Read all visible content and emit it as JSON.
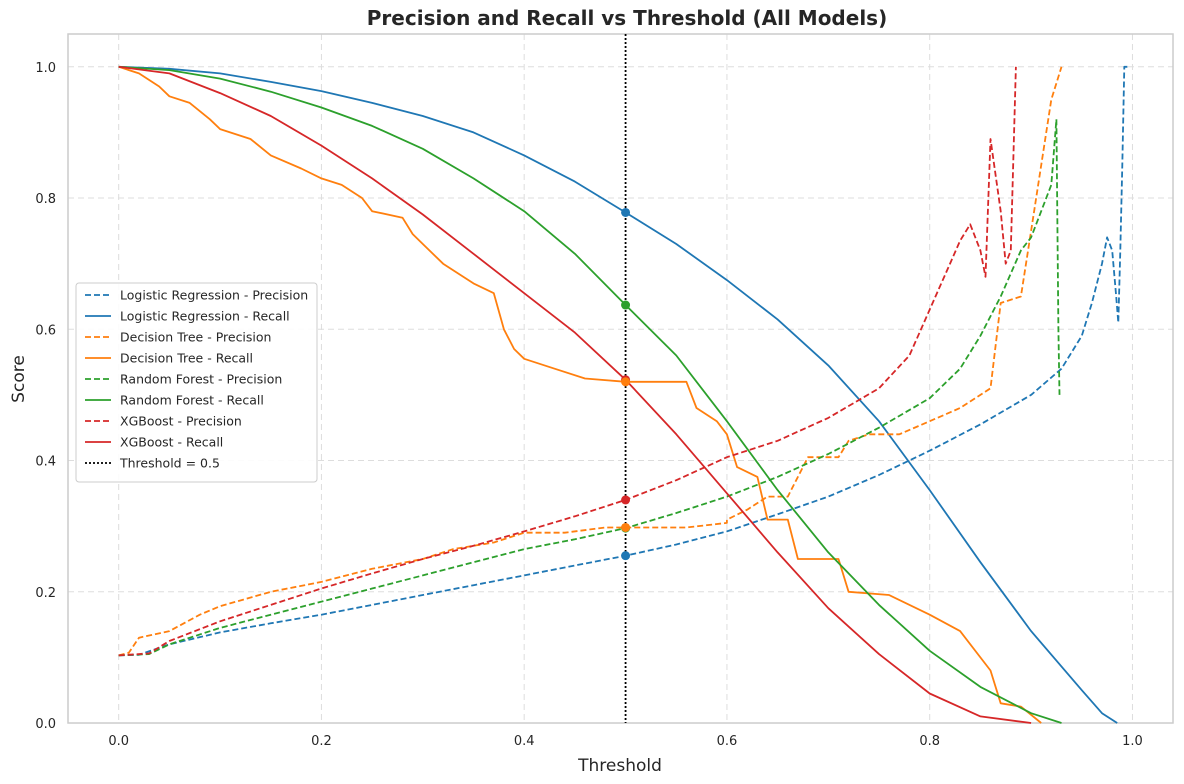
{
  "chart_data": {
    "type": "line",
    "title": "Precision and Recall vs Threshold (All Models)",
    "xlabel": "Threshold",
    "ylabel": "Score",
    "xlim": [
      -0.05,
      1.04
    ],
    "ylim": [
      0,
      1.05
    ],
    "x_ticks": [
      "0.0",
      "0.2",
      "0.4",
      "0.6",
      "0.8",
      "1.0"
    ],
    "y_ticks": [
      "0.0",
      "0.2",
      "0.4",
      "0.6",
      "0.8",
      "1.0"
    ],
    "grid": true,
    "legend_position": "center-left",
    "threshold_line": {
      "x": 0.5,
      "label": "Threshold = 0.5",
      "color": "#000000"
    },
    "series": [
      {
        "name": "Logistic Regression - Precision",
        "color": "#1f77b4",
        "style": "dashed",
        "points": [
          [
            0.0,
            0.103
          ],
          [
            0.02,
            0.104
          ],
          [
            0.05,
            0.12
          ],
          [
            0.1,
            0.138
          ],
          [
            0.15,
            0.152
          ],
          [
            0.2,
            0.165
          ],
          [
            0.25,
            0.18
          ],
          [
            0.3,
            0.195
          ],
          [
            0.35,
            0.21
          ],
          [
            0.4,
            0.225
          ],
          [
            0.45,
            0.24
          ],
          [
            0.5,
            0.255
          ],
          [
            0.55,
            0.272
          ],
          [
            0.6,
            0.292
          ],
          [
            0.65,
            0.318
          ],
          [
            0.7,
            0.345
          ],
          [
            0.75,
            0.378
          ],
          [
            0.8,
            0.415
          ],
          [
            0.85,
            0.455
          ],
          [
            0.9,
            0.5
          ],
          [
            0.93,
            0.54
          ],
          [
            0.95,
            0.59
          ],
          [
            0.96,
            0.64
          ],
          [
            0.97,
            0.7
          ],
          [
            0.975,
            0.74
          ],
          [
            0.98,
            0.72
          ],
          [
            0.984,
            0.65
          ],
          [
            0.986,
            0.61
          ],
          [
            0.988,
            0.72
          ],
          [
            0.99,
            0.85
          ],
          [
            0.992,
            1.0
          ],
          [
            0.995,
            1.0
          ]
        ]
      },
      {
        "name": "Logistic Regression - Recall",
        "color": "#1f77b4",
        "style": "solid",
        "points": [
          [
            0.0,
            1.0
          ],
          [
            0.05,
            0.997
          ],
          [
            0.1,
            0.99
          ],
          [
            0.15,
            0.977
          ],
          [
            0.2,
            0.963
          ],
          [
            0.25,
            0.945
          ],
          [
            0.3,
            0.925
          ],
          [
            0.35,
            0.9
          ],
          [
            0.4,
            0.865
          ],
          [
            0.45,
            0.825
          ],
          [
            0.5,
            0.778
          ],
          [
            0.55,
            0.73
          ],
          [
            0.6,
            0.675
          ],
          [
            0.65,
            0.615
          ],
          [
            0.7,
            0.545
          ],
          [
            0.75,
            0.46
          ],
          [
            0.8,
            0.355
          ],
          [
            0.85,
            0.245
          ],
          [
            0.9,
            0.14
          ],
          [
            0.95,
            0.05
          ],
          [
            0.97,
            0.015
          ],
          [
            0.985,
            0.0
          ]
        ]
      },
      {
        "name": "Decision Tree - Precision",
        "color": "#ff7f0e",
        "style": "dashed",
        "points": [
          [
            0.0,
            0.103
          ],
          [
            0.01,
            0.107
          ],
          [
            0.02,
            0.13
          ],
          [
            0.05,
            0.14
          ],
          [
            0.08,
            0.165
          ],
          [
            0.1,
            0.178
          ],
          [
            0.15,
            0.2
          ],
          [
            0.2,
            0.215
          ],
          [
            0.25,
            0.235
          ],
          [
            0.3,
            0.25
          ],
          [
            0.33,
            0.265
          ],
          [
            0.37,
            0.275
          ],
          [
            0.4,
            0.29
          ],
          [
            0.44,
            0.29
          ],
          [
            0.48,
            0.298
          ],
          [
            0.52,
            0.298
          ],
          [
            0.56,
            0.298
          ],
          [
            0.6,
            0.305
          ],
          [
            0.6,
            0.31
          ],
          [
            0.62,
            0.325
          ],
          [
            0.64,
            0.345
          ],
          [
            0.66,
            0.345
          ],
          [
            0.68,
            0.405
          ],
          [
            0.71,
            0.405
          ],
          [
            0.72,
            0.43
          ],
          [
            0.74,
            0.44
          ],
          [
            0.77,
            0.44
          ],
          [
            0.8,
            0.46
          ],
          [
            0.83,
            0.48
          ],
          [
            0.86,
            0.51
          ],
          [
            0.87,
            0.64
          ],
          [
            0.89,
            0.65
          ],
          [
            0.9,
            0.75
          ],
          [
            0.91,
            0.85
          ],
          [
            0.92,
            0.95
          ],
          [
            0.93,
            1.0
          ]
        ]
      },
      {
        "name": "Decision Tree - Recall",
        "color": "#ff7f0e",
        "style": "solid",
        "points": [
          [
            0.0,
            1.0
          ],
          [
            0.02,
            0.99
          ],
          [
            0.04,
            0.97
          ],
          [
            0.05,
            0.955
          ],
          [
            0.07,
            0.945
          ],
          [
            0.09,
            0.92
          ],
          [
            0.1,
            0.905
          ],
          [
            0.13,
            0.89
          ],
          [
            0.15,
            0.865
          ],
          [
            0.18,
            0.845
          ],
          [
            0.2,
            0.83
          ],
          [
            0.22,
            0.82
          ],
          [
            0.24,
            0.8
          ],
          [
            0.25,
            0.78
          ],
          [
            0.28,
            0.77
          ],
          [
            0.29,
            0.745
          ],
          [
            0.3,
            0.73
          ],
          [
            0.32,
            0.7
          ],
          [
            0.35,
            0.67
          ],
          [
            0.37,
            0.655
          ],
          [
            0.38,
            0.6
          ],
          [
            0.39,
            0.57
          ],
          [
            0.4,
            0.555
          ],
          [
            0.43,
            0.54
          ],
          [
            0.46,
            0.525
          ],
          [
            0.5,
            0.52
          ],
          [
            0.56,
            0.52
          ],
          [
            0.57,
            0.48
          ],
          [
            0.59,
            0.46
          ],
          [
            0.6,
            0.44
          ],
          [
            0.61,
            0.39
          ],
          [
            0.63,
            0.375
          ],
          [
            0.64,
            0.31
          ],
          [
            0.66,
            0.31
          ],
          [
            0.67,
            0.25
          ],
          [
            0.71,
            0.25
          ],
          [
            0.72,
            0.2
          ],
          [
            0.76,
            0.195
          ],
          [
            0.8,
            0.165
          ],
          [
            0.83,
            0.14
          ],
          [
            0.86,
            0.08
          ],
          [
            0.87,
            0.03
          ],
          [
            0.89,
            0.025
          ],
          [
            0.91,
            0.0
          ]
        ]
      },
      {
        "name": "Random Forest - Precision",
        "color": "#2ca02c",
        "style": "dashed",
        "points": [
          [
            0.0,
            0.103
          ],
          [
            0.03,
            0.105
          ],
          [
            0.05,
            0.12
          ],
          [
            0.1,
            0.145
          ],
          [
            0.15,
            0.165
          ],
          [
            0.2,
            0.185
          ],
          [
            0.25,
            0.205
          ],
          [
            0.3,
            0.225
          ],
          [
            0.35,
            0.245
          ],
          [
            0.4,
            0.265
          ],
          [
            0.45,
            0.28
          ],
          [
            0.5,
            0.297
          ],
          [
            0.55,
            0.32
          ],
          [
            0.6,
            0.345
          ],
          [
            0.65,
            0.375
          ],
          [
            0.7,
            0.41
          ],
          [
            0.75,
            0.45
          ],
          [
            0.8,
            0.495
          ],
          [
            0.83,
            0.54
          ],
          [
            0.85,
            0.59
          ],
          [
            0.87,
            0.65
          ],
          [
            0.89,
            0.72
          ],
          [
            0.9,
            0.74
          ],
          [
            0.91,
            0.78
          ],
          [
            0.92,
            0.82
          ],
          [
            0.925,
            0.92
          ],
          [
            0.927,
            0.6
          ],
          [
            0.928,
            0.5
          ]
        ]
      },
      {
        "name": "Random Forest - Recall",
        "color": "#2ca02c",
        "style": "solid",
        "points": [
          [
            0.0,
            1.0
          ],
          [
            0.05,
            0.995
          ],
          [
            0.1,
            0.982
          ],
          [
            0.15,
            0.962
          ],
          [
            0.2,
            0.938
          ],
          [
            0.25,
            0.91
          ],
          [
            0.3,
            0.875
          ],
          [
            0.35,
            0.83
          ],
          [
            0.4,
            0.78
          ],
          [
            0.45,
            0.715
          ],
          [
            0.5,
            0.637
          ],
          [
            0.55,
            0.56
          ],
          [
            0.6,
            0.46
          ],
          [
            0.65,
            0.355
          ],
          [
            0.7,
            0.26
          ],
          [
            0.75,
            0.18
          ],
          [
            0.8,
            0.11
          ],
          [
            0.85,
            0.055
          ],
          [
            0.9,
            0.015
          ],
          [
            0.93,
            0.0
          ]
        ]
      },
      {
        "name": "XGBoost - Precision",
        "color": "#d62728",
        "style": "dashed",
        "points": [
          [
            0.0,
            0.103
          ],
          [
            0.03,
            0.106
          ],
          [
            0.05,
            0.125
          ],
          [
            0.1,
            0.155
          ],
          [
            0.15,
            0.18
          ],
          [
            0.2,
            0.205
          ],
          [
            0.25,
            0.228
          ],
          [
            0.3,
            0.25
          ],
          [
            0.35,
            0.27
          ],
          [
            0.4,
            0.292
          ],
          [
            0.45,
            0.315
          ],
          [
            0.5,
            0.34
          ],
          [
            0.55,
            0.37
          ],
          [
            0.6,
            0.405
          ],
          [
            0.65,
            0.43
          ],
          [
            0.7,
            0.465
          ],
          [
            0.75,
            0.51
          ],
          [
            0.78,
            0.56
          ],
          [
            0.8,
            0.63
          ],
          [
            0.82,
            0.7
          ],
          [
            0.83,
            0.735
          ],
          [
            0.84,
            0.76
          ],
          [
            0.85,
            0.72
          ],
          [
            0.855,
            0.68
          ],
          [
            0.86,
            0.89
          ],
          [
            0.87,
            0.78
          ],
          [
            0.875,
            0.7
          ],
          [
            0.88,
            0.72
          ],
          [
            0.885,
            1.0
          ]
        ]
      },
      {
        "name": "XGBoost - Recall",
        "color": "#d62728",
        "style": "solid",
        "points": [
          [
            0.0,
            1.0
          ],
          [
            0.05,
            0.99
          ],
          [
            0.1,
            0.96
          ],
          [
            0.15,
            0.925
          ],
          [
            0.2,
            0.88
          ],
          [
            0.25,
            0.83
          ],
          [
            0.3,
            0.775
          ],
          [
            0.35,
            0.715
          ],
          [
            0.4,
            0.655
          ],
          [
            0.45,
            0.595
          ],
          [
            0.5,
            0.523
          ],
          [
            0.55,
            0.44
          ],
          [
            0.6,
            0.35
          ],
          [
            0.65,
            0.26
          ],
          [
            0.7,
            0.175
          ],
          [
            0.75,
            0.105
          ],
          [
            0.8,
            0.045
          ],
          [
            0.85,
            0.01
          ],
          [
            0.9,
            0.0
          ]
        ]
      }
    ],
    "markers": [
      {
        "x": 0.5,
        "y": 0.778,
        "color": "#1f77b4"
      },
      {
        "x": 0.5,
        "y": 0.255,
        "color": "#1f77b4"
      },
      {
        "x": 0.5,
        "y": 0.637,
        "color": "#2ca02c"
      },
      {
        "x": 0.5,
        "y": 0.297,
        "color": "#2ca02c"
      },
      {
        "x": 0.5,
        "y": 0.523,
        "color": "#d62728"
      },
      {
        "x": 0.5,
        "y": 0.34,
        "color": "#d62728"
      },
      {
        "x": 0.5,
        "y": 0.52,
        "color": "#ff7f0e"
      },
      {
        "x": 0.5,
        "y": 0.298,
        "color": "#ff7f0e"
      }
    ]
  }
}
